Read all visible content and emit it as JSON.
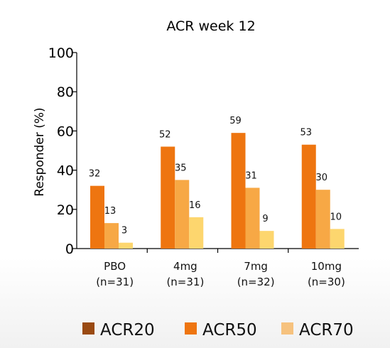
{
  "chart_data": {
    "type": "bar",
    "title": "ACR week 12",
    "ylabel": "Responder (%)",
    "xlabel": "",
    "ylim": [
      0,
      100
    ],
    "yticks": [
      "0",
      "20",
      "40",
      "60",
      "80",
      "100"
    ],
    "categories": [
      {
        "name": "PBO",
        "n": "(n=31)"
      },
      {
        "name": "4mg",
        "n": "(n=31)"
      },
      {
        "name": "7mg",
        "n": "(n=32)"
      },
      {
        "name": "10mg",
        "n": "(n=30)"
      }
    ],
    "bar_values": [
      [
        32,
        13,
        3
      ],
      [
        52,
        35,
        16
      ],
      [
        59,
        31,
        9
      ],
      [
        53,
        30,
        10
      ]
    ],
    "bar_colors": [
      "#ee7510",
      "#f7a845",
      "#fdd66e"
    ],
    "legend": [
      {
        "label": "ACR20",
        "color": "#9a4a12"
      },
      {
        "label": "ACR50",
        "color": "#ee7510"
      },
      {
        "label": "ACR70",
        "color": "#f6c27e"
      }
    ],
    "grid": false,
    "legend_position": "bottom"
  }
}
